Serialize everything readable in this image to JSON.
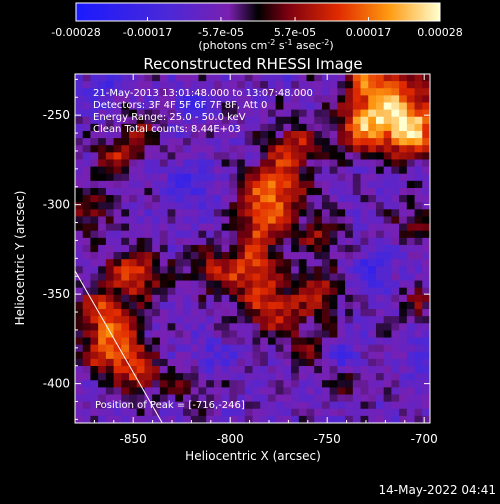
{
  "chart_data": {
    "type": "heatmap",
    "title": "Reconstructed RHESSI Image",
    "xlabel": "Heliocentric X (arcsec)",
    "ylabel": "Heliocentric Y (arcsec)",
    "xlim": [
      -880,
      -697
    ],
    "ylim": [
      -422,
      -227
    ],
    "x_ticks": [
      -850,
      -800,
      -750,
      -700
    ],
    "y_ticks": [
      -250,
      -300,
      -350,
      -400
    ],
    "colorbar": {
      "range": [
        -0.00028,
        0.00028
      ],
      "tick_values": [
        -0.00028,
        -0.00017,
        -5.7e-05,
        5.7e-05,
        0.00017,
        0.00028
      ],
      "tick_labels": [
        "-0.00028",
        "-0.00017",
        "-5.7e-05",
        "5.7e-05",
        "0.00017",
        "0.00028"
      ],
      "label_main": "(photons cm",
      "label_exp1": "-2",
      "label_mid1": " s",
      "label_exp2": "-1",
      "label_mid2": " asec",
      "label_exp3": "-2",
      "label_end": ")"
    },
    "annotations": {
      "time": "21-May-2013 13:01:48.000 to 13:07:48.000",
      "detectors": "Detectors: 3F 4F 5F 6F 7F 8F, Att 0",
      "energy": "Energy Range: 25.0 - 50.0 keV",
      "method": "Clean     Total counts: 8.44E+03",
      "peak": "Position of Peak = [-716,-246]"
    },
    "limb_line": {
      "x": [
        -880,
        -835
      ],
      "y": [
        -337,
        -422
      ]
    },
    "grid_size": [
      46,
      49
    ],
    "hot_spots": [
      {
        "x": -716,
        "y": -246,
        "sigma": 14,
        "amp": 0.00028
      },
      {
        "x": -706,
        "y": -261,
        "sigma": 9,
        "amp": 0.00018
      },
      {
        "x": -733,
        "y": -258,
        "sigma": 9,
        "amp": 0.00016
      },
      {
        "x": -730,
        "y": -230,
        "sigma": 8,
        "amp": 0.00012
      },
      {
        "x": -767,
        "y": -268,
        "sigma": 9,
        "amp": 0.00016
      },
      {
        "x": -778,
        "y": -292,
        "sigma": 11,
        "amp": 0.00024
      },
      {
        "x": -784,
        "y": -313,
        "sigma": 9,
        "amp": 0.00015
      },
      {
        "x": -790,
        "y": -338,
        "sigma": 11,
        "amp": 0.0002
      },
      {
        "x": -778,
        "y": -360,
        "sigma": 9,
        "amp": 0.00016
      },
      {
        "x": -755,
        "y": -350,
        "sigma": 9,
        "amp": 0.00015
      },
      {
        "x": -753,
        "y": -318,
        "sigma": 8,
        "amp": 0.00012
      },
      {
        "x": -849,
        "y": -338,
        "sigma": 10,
        "amp": 0.0002
      },
      {
        "x": -866,
        "y": -360,
        "sigma": 9,
        "amp": 0.00016
      },
      {
        "x": -860,
        "y": -380,
        "sigma": 11,
        "amp": 0.00022
      },
      {
        "x": -846,
        "y": -396,
        "sigma": 8,
        "amp": 0.00013
      },
      {
        "x": -872,
        "y": -305,
        "sigma": 8,
        "amp": 0.00012
      },
      {
        "x": -860,
        "y": -275,
        "sigma": 8,
        "amp": 0.00012
      },
      {
        "x": -848,
        "y": -261,
        "sigma": 8,
        "amp": 0.00011
      },
      {
        "x": -813,
        "y": -336,
        "sigma": 7,
        "amp": 0.00011
      },
      {
        "x": -760,
        "y": -378,
        "sigma": 8,
        "amp": 0.0001
      },
      {
        "x": -820,
        "y": -400,
        "sigma": 7,
        "amp": 8e-05
      },
      {
        "x": -704,
        "y": -310,
        "sigma": 8,
        "amp": 0.0001
      },
      {
        "x": -703,
        "y": -355,
        "sigma": 7,
        "amp": 9e-05
      },
      {
        "x": -740,
        "y": -400,
        "sigma": 7,
        "amp": 8e-05
      }
    ],
    "cold_spots": [
      {
        "x": -820,
        "y": -290,
        "sigma": 8,
        "amp": -0.00011
      },
      {
        "x": -820,
        "y": -245,
        "sigma": 7,
        "amp": -9e-05
      },
      {
        "x": -725,
        "y": -335,
        "sigma": 8,
        "amp": -0.00011
      },
      {
        "x": -740,
        "y": -385,
        "sigma": 6,
        "amp": -8e-05
      },
      {
        "x": -700,
        "y": -385,
        "sigma": 6,
        "amp": -8e-05
      },
      {
        "x": -810,
        "y": -385,
        "sigma": 7,
        "amp": -8e-05
      },
      {
        "x": -865,
        "y": -235,
        "sigma": 7,
        "amp": -9e-05
      }
    ]
  },
  "footer": {
    "timestamp": "14-May-2022 04:41"
  }
}
